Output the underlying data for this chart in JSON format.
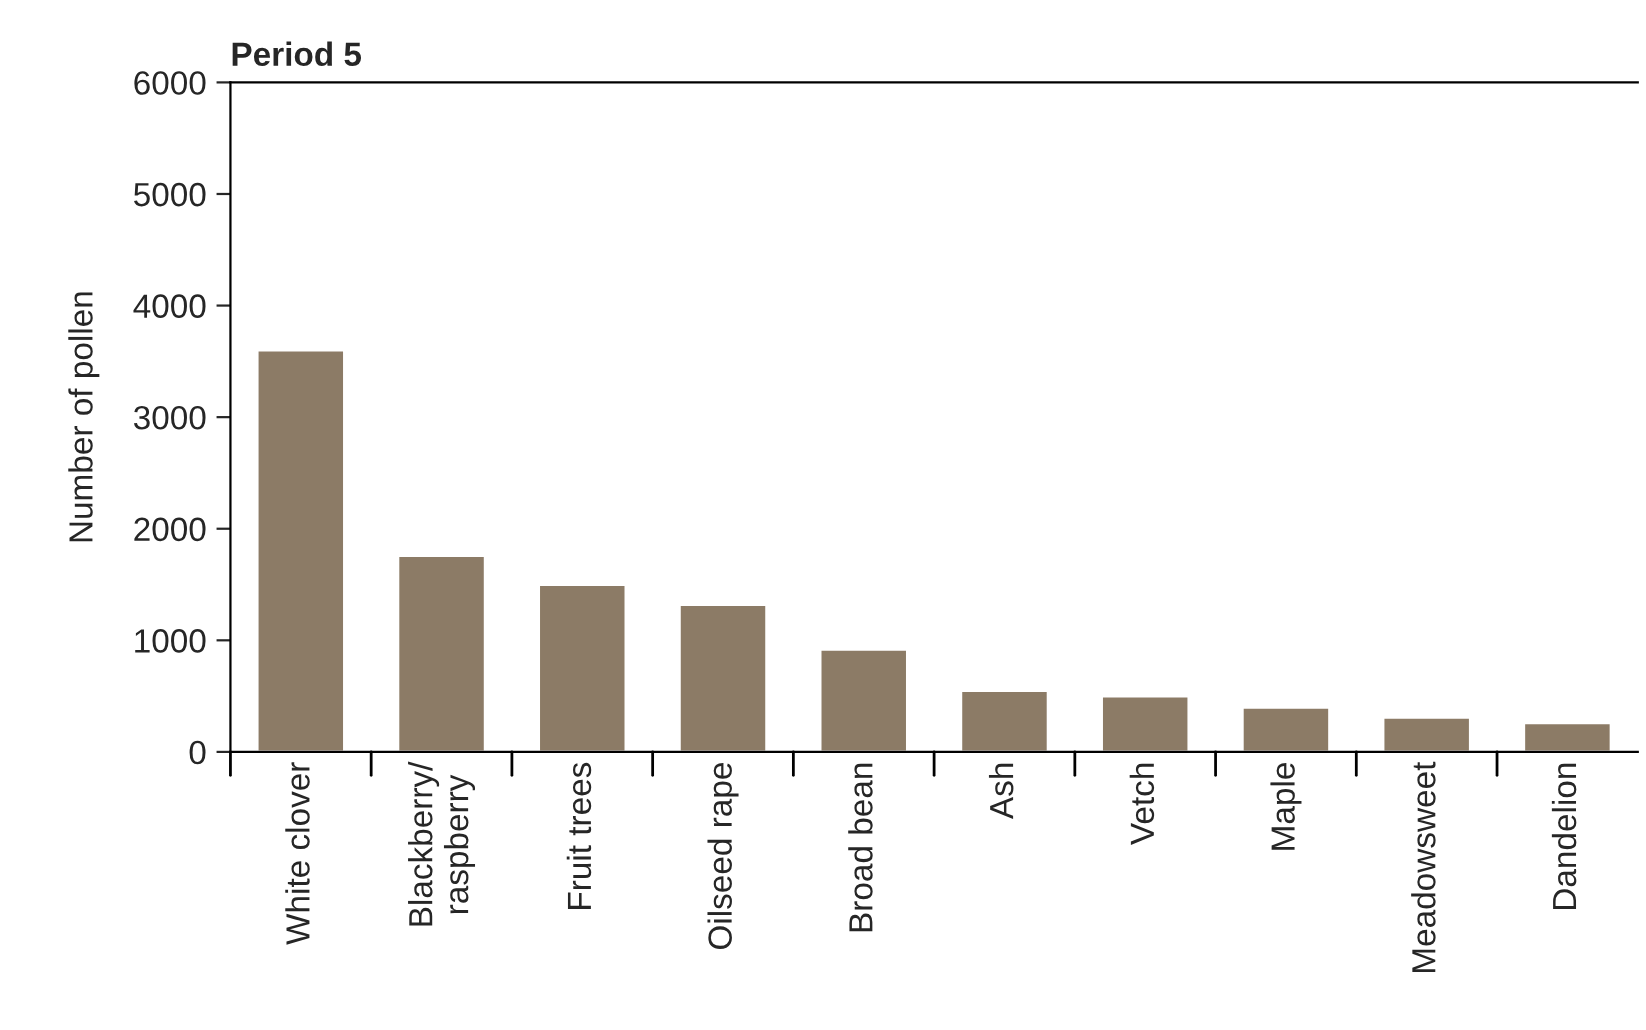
{
  "chart_data": {
    "type": "bar",
    "title": "Period 5",
    "ylabel": "Number of pollen",
    "categories": [
      "White clover",
      "Blackberry/\nraspberry",
      "Fruit trees",
      "Oilseed rape",
      "Broad bean",
      "Ash",
      "Vetch",
      "Maple",
      "Meadowsweet",
      "Dandelion"
    ],
    "values": [
      3600,
      1760,
      1500,
      1320,
      920,
      550,
      500,
      400,
      310,
      260
    ],
    "color": "#8c7b66",
    "ylim": [
      0,
      6000
    ],
    "yticks": [
      0,
      1000,
      2000,
      3000,
      4000,
      5000,
      6000
    ],
    "grid": false,
    "legend": false
  }
}
